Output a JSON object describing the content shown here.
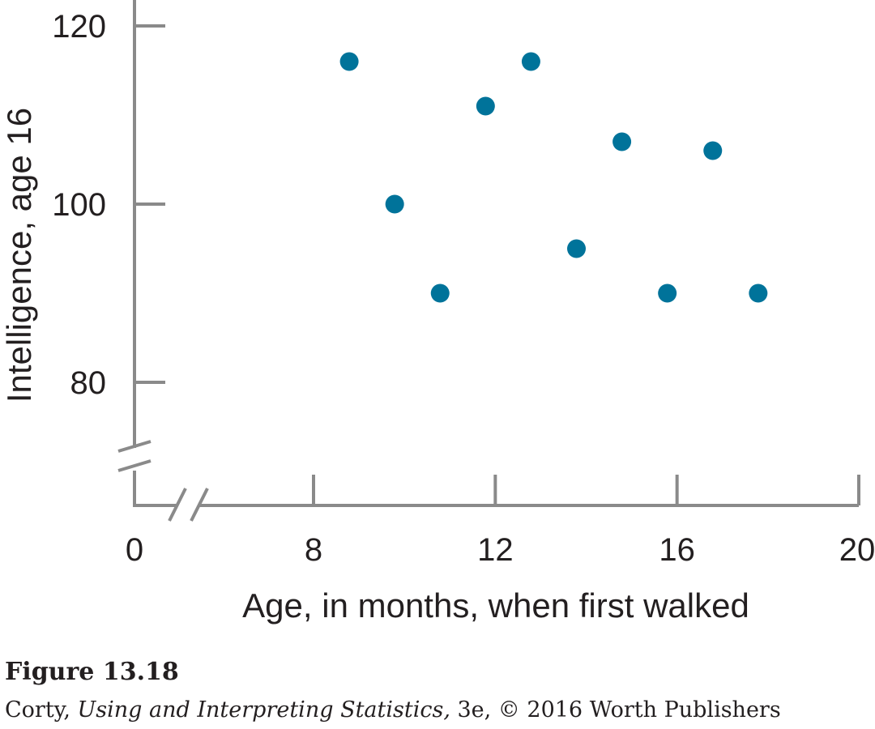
{
  "chart_data": {
    "type": "scatter",
    "xlabel": "Age, in months, when first walked",
    "ylabel": "Intelligence, age 16",
    "x_ticks": [
      "0",
      "8",
      "12",
      "16",
      "20"
    ],
    "y_ticks": [
      "80",
      "100",
      "120"
    ],
    "xlim": [
      0,
      20
    ],
    "ylim": [
      80,
      120
    ],
    "axis_breaks": [
      "x",
      "y"
    ],
    "grid": false,
    "point_color": "#00739a",
    "x": [
      9,
      10,
      11,
      12,
      13,
      14,
      15,
      16,
      17,
      18
    ],
    "y": [
      116,
      100,
      90,
      111,
      116,
      95,
      107,
      90,
      106,
      90
    ]
  },
  "caption": {
    "figure_number": "Figure 13.18",
    "author": "Corty, ",
    "book_title": "Using and Interpreting Statistics,",
    "rest": " 3e, © 2016 Worth Publishers"
  }
}
